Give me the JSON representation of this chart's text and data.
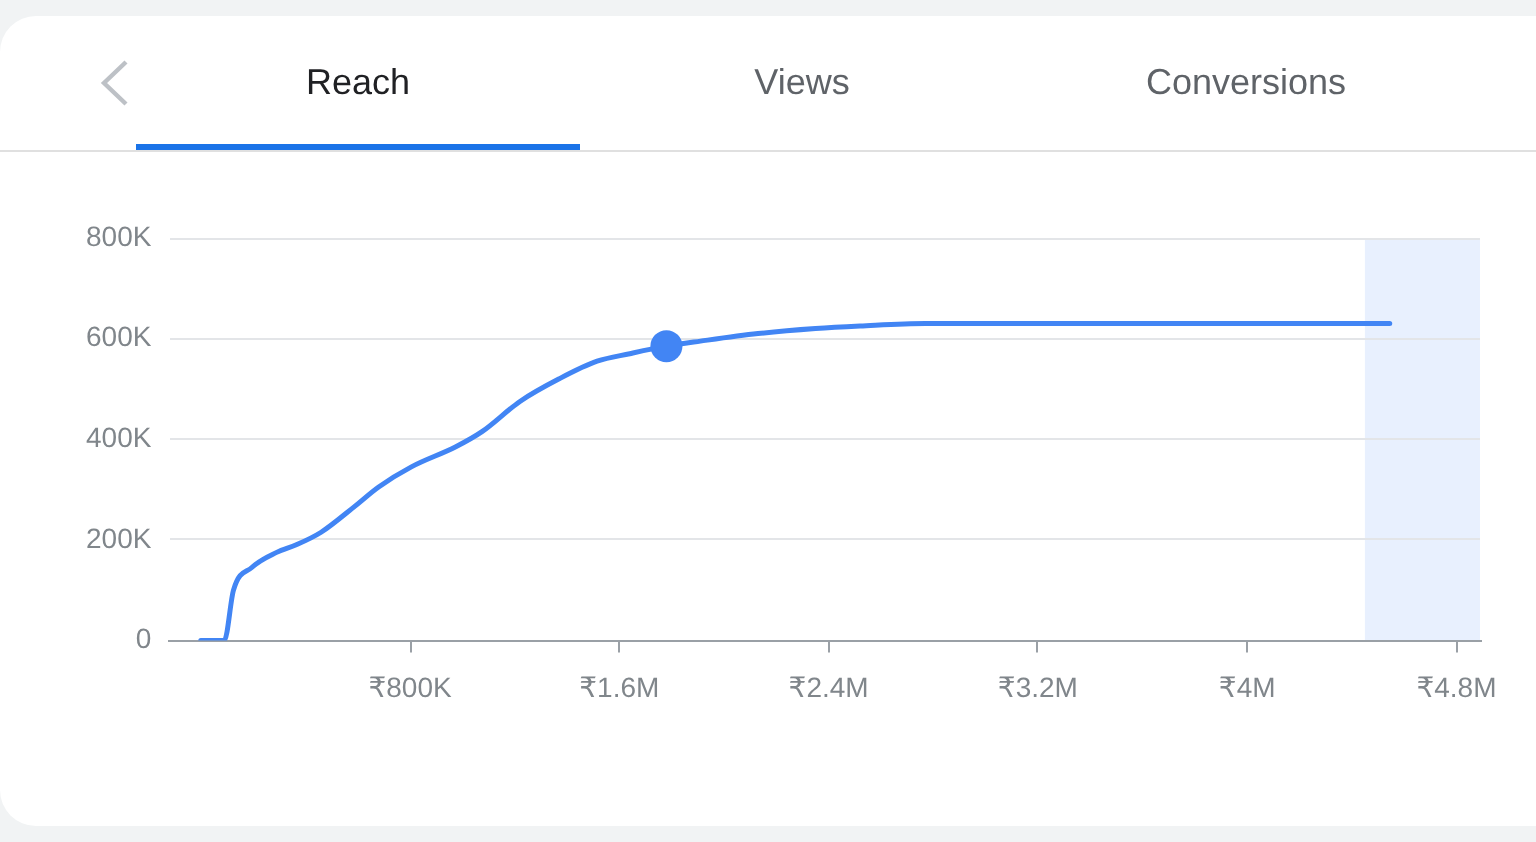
{
  "chart_data": {
    "type": "line",
    "title": "Reach",
    "annotations": [
      "Views",
      "Conversions"
    ],
    "xlim": [
      -120000,
      4890000
    ],
    "xticks": [
      {
        "value": 800000,
        "label": "₹800K"
      },
      {
        "value": 1600000,
        "label": "₹1.6M"
      },
      {
        "value": 2400000,
        "label": "₹2.4M"
      },
      {
        "value": 3200000,
        "label": "₹3.2M"
      },
      {
        "value": 4000000,
        "label": "₹4M"
      },
      {
        "value": 4800000,
        "label": "₹4.8M"
      }
    ],
    "ylim": [
      0,
      800000
    ],
    "yticks": [
      0,
      {
        "value": 200000,
        "label": "200K"
      },
      {
        "value": 400000,
        "label": "400K"
      },
      {
        "value": 600000,
        "label": "600K"
      },
      {
        "value": 800000,
        "label": "800K"
      }
    ],
    "grid": "y",
    "bands": [
      {
        "axis": "x",
        "from": 4450000,
        "to": 4890000,
        "color": "#e8f0fe"
      }
    ],
    "series": [
      {
        "color": "#4285f4",
        "x": [
          0,
          90000,
          125000,
          195000,
          290000,
          365000,
          460000,
          585000,
          680000,
          805000,
          975000,
          1075000,
          1220000,
          1370000,
          1515000,
          1640000,
          1780000,
          1910000,
          2130000,
          2350000,
          2520000,
          2770000,
          3500000,
          4450000,
          4545000
        ],
        "values": [
          0,
          0,
          100000,
          145000,
          175000,
          190000,
          215000,
          265000,
          305000,
          345000,
          385000,
          415000,
          475000,
          520000,
          555000,
          570000,
          585000,
          595000,
          610000,
          620000,
          625000,
          630000,
          630000,
          630000,
          630000
        ]
      },
      {
        "type": "scatter",
        "color": "#4285f4",
        "marker": "circle",
        "x": [
          1780000
        ],
        "values": [
          585000
        ]
      }
    ]
  }
}
